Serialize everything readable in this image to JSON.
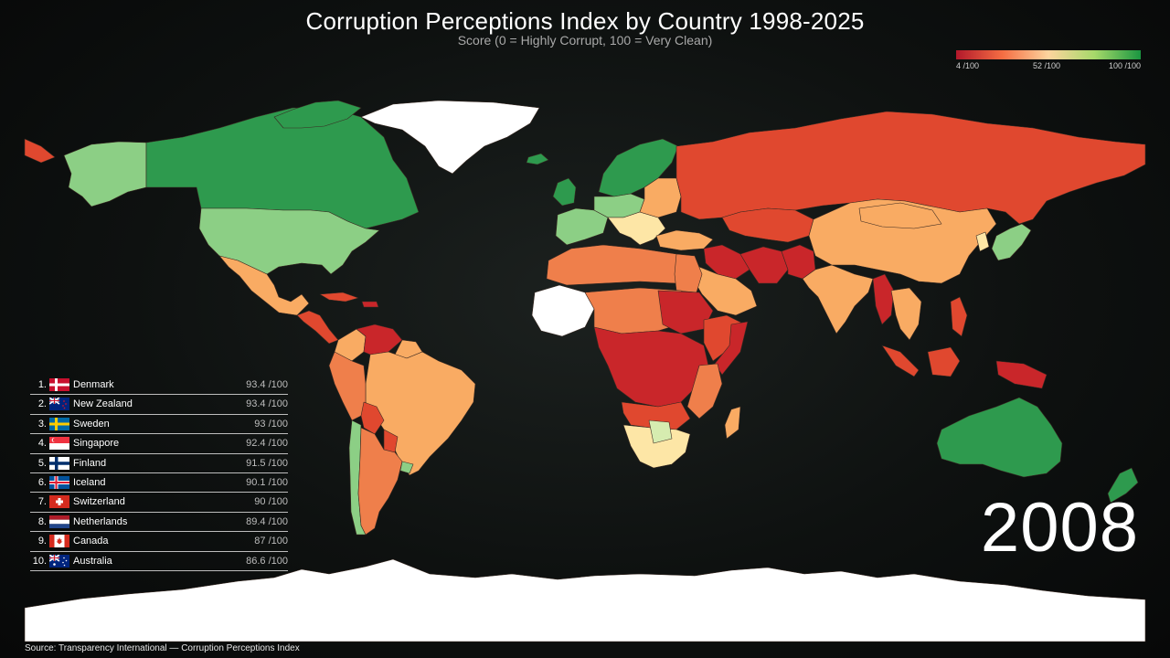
{
  "header": {
    "title": "Corruption Perceptions Index by Country 1998-2025",
    "subtitle": "Score (0 = Highly Corrupt, 100 = Very Clean)"
  },
  "legend": {
    "min_label": "4 /100",
    "mid_label": "52 /100",
    "max_label": "100 /100",
    "colors": [
      "#b2182b",
      "#f46d43",
      "#fdd49e",
      "#a6d96a",
      "#1a9641"
    ]
  },
  "year": "2008",
  "ranking": [
    {
      "rank": "1.",
      "country": "Denmark",
      "score": "93.4 /100",
      "flag": "flag-denmark-icon"
    },
    {
      "rank": "2.",
      "country": "New Zealand",
      "score": "93.4 /100",
      "flag": "flag-new-zealand-icon"
    },
    {
      "rank": "3.",
      "country": "Sweden",
      "score": "93 /100",
      "flag": "flag-sweden-icon"
    },
    {
      "rank": "4.",
      "country": "Singapore",
      "score": "92.4 /100",
      "flag": "flag-singapore-icon"
    },
    {
      "rank": "5.",
      "country": "Finland",
      "score": "91.5 /100",
      "flag": "flag-finland-icon"
    },
    {
      "rank": "6.",
      "country": "Iceland",
      "score": "90.1 /100",
      "flag": "flag-iceland-icon"
    },
    {
      "rank": "7.",
      "country": "Switzerland",
      "score": "90 /100",
      "flag": "flag-switzerland-icon"
    },
    {
      "rank": "8.",
      "country": "Netherlands",
      "score": "89.4 /100",
      "flag": "flag-netherlands-icon"
    },
    {
      "rank": "9.",
      "country": "Canada",
      "score": "87 /100",
      "flag": "flag-canada-icon"
    },
    {
      "rank": "10.",
      "country": "Australia",
      "score": "86.6 /100",
      "flag": "flag-australia-icon"
    }
  ],
  "source": "Source: Transparency International — Corruption Perceptions Index",
  "map_colors": {
    "no_data": "#ffffff",
    "very_clean": "#2e9a4e",
    "clean": "#8ccf85",
    "pale_green": "#d6ecb0",
    "pale": "#fde6a6",
    "mid": "#f9ab63",
    "orange": "#ef7f4b",
    "red": "#e0482f",
    "dark_red": "#c9262a"
  }
}
